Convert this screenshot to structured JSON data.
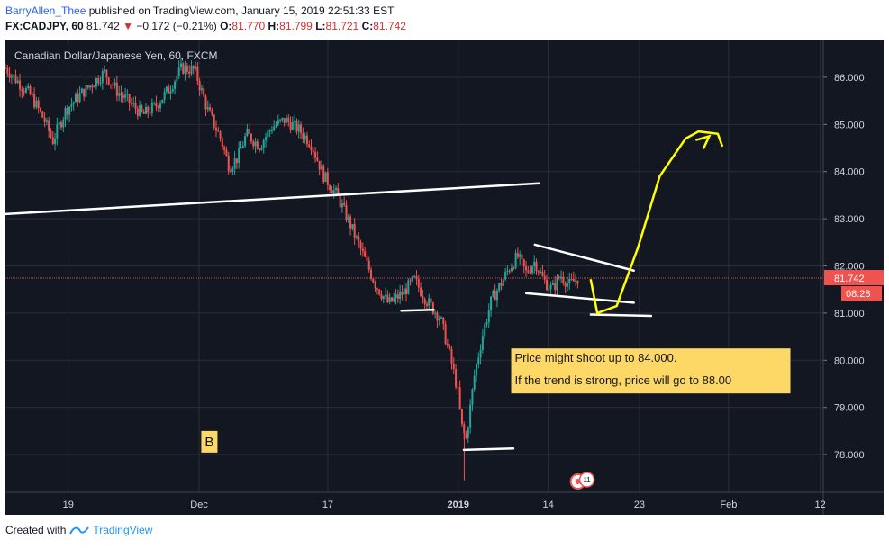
{
  "header": {
    "username": "BarryAllen_Thee",
    "published_text": "published on TradingView.com, January 15, 2019 22:51:33 EST",
    "symbol": "FX:CADJPY, 60",
    "last": "81.742",
    "change": "−0.172 (−0.21%)",
    "o_label": "O:",
    "o_value": "81.770",
    "h_label": "H:",
    "h_value": "81.799",
    "l_label": "L:",
    "l_value": "81.721",
    "c_label": "C:",
    "c_value": "81.742"
  },
  "footer": {
    "created_with": "Created with",
    "brand": "TradingView"
  },
  "colors": {
    "background": "#131722",
    "bull": "#26a69a",
    "bear": "#ef5350",
    "price_badge": "#ef5350",
    "note_bg": "#fdd867",
    "projection": "#ffff00",
    "trendline": "#ffffff"
  },
  "chart_data": {
    "type": "candlestick",
    "title": "Canadian Dollar/Japanese Yen, 60, FXCM",
    "y_ticks": [
      "86.000",
      "85.000",
      "84.000",
      "83.000",
      "82.000",
      "81.000",
      "80.000",
      "79.000",
      "78.000"
    ],
    "x_ticks": [
      "19",
      "Dec",
      "17",
      "2019",
      "14",
      "23",
      "Feb",
      "12"
    ],
    "ylim": [
      77.2,
      86.8
    ],
    "last_price": "81.742",
    "countdown": "08:28",
    "grid": true,
    "path": [
      [
        0,
        86.2
      ],
      [
        0.03,
        85.9
      ],
      [
        0.06,
        85.6
      ],
      [
        0.09,
        85.1
      ],
      [
        0.11,
        84.65
      ],
      [
        0.14,
        85.3
      ],
      [
        0.17,
        85.6
      ],
      [
        0.2,
        85.85
      ],
      [
        0.23,
        86.1
      ],
      [
        0.26,
        85.7
      ],
      [
        0.29,
        85.45
      ],
      [
        0.32,
        85.2
      ],
      [
        0.35,
        85.4
      ],
      [
        0.38,
        85.75
      ],
      [
        0.41,
        86.2
      ],
      [
        0.44,
        86.15
      ],
      [
        0.47,
        85.3
      ],
      [
        0.5,
        84.7
      ],
      [
        0.52,
        84.1
      ],
      [
        0.54,
        84.3
      ],
      [
        0.56,
        84.8
      ],
      [
        0.59,
        84.55
      ],
      [
        0.62,
        84.95
      ],
      [
        0.65,
        85.1
      ],
      [
        0.68,
        84.9
      ],
      [
        0.71,
        84.6
      ],
      [
        0.74,
        83.9
      ],
      [
        0.77,
        83.5
      ],
      [
        0.8,
        82.9
      ],
      [
        0.83,
        82.25
      ],
      [
        0.86,
        81.6
      ],
      [
        0.89,
        81.2
      ],
      [
        0.92,
        81.4
      ],
      [
        0.95,
        81.7
      ],
      [
        0.98,
        81.25
      ],
      [
        1.01,
        80.9
      ],
      [
        1.03,
        80.2
      ],
      [
        1.05,
        79.4
      ],
      [
        1.06,
        78.6
      ],
      [
        1.07,
        78.3
      ],
      [
        1.09,
        79.7
      ],
      [
        1.11,
        80.6
      ],
      [
        1.13,
        81.3
      ],
      [
        1.15,
        81.6
      ],
      [
        1.17,
        81.95
      ],
      [
        1.19,
        82.2
      ],
      [
        1.21,
        81.85
      ],
      [
        1.23,
        82.1
      ],
      [
        1.25,
        81.7
      ],
      [
        1.27,
        81.5
      ],
      [
        1.29,
        81.8
      ],
      [
        1.31,
        81.6
      ],
      [
        1.33,
        81.74
      ]
    ],
    "drawings": {
      "trendlines": [
        {
          "name": "long-term-support-line",
          "from": [
            0,
            83.1
          ],
          "to": [
            1.24,
            83.75
          ]
        },
        {
          "name": "support-line-81",
          "from": [
            0.92,
            81.05
          ],
          "to": [
            0.995,
            81.07
          ]
        },
        {
          "name": "bottom-support-line",
          "from": [
            1.065,
            78.1
          ],
          "to": [
            1.18,
            78.13
          ]
        },
        {
          "name": "wedge-upper-line",
          "from": [
            1.23,
            82.45
          ],
          "to": [
            1.46,
            81.9
          ]
        },
        {
          "name": "wedge-lower-line",
          "from": [
            1.21,
            81.42
          ],
          "to": [
            1.46,
            81.22
          ]
        },
        {
          "name": "support-line-81b",
          "from": [
            1.36,
            80.97
          ],
          "to": [
            1.5,
            80.94
          ]
        }
      ],
      "projection": [
        [
          1.36,
          81.7
        ],
        [
          1.375,
          81.0
        ],
        [
          1.42,
          81.15
        ],
        [
          1.47,
          82.4
        ],
        [
          1.52,
          83.9
        ],
        [
          1.58,
          84.7
        ],
        [
          1.61,
          84.85
        ],
        [
          1.655,
          84.8
        ],
        [
          1.665,
          84.55
        ]
      ],
      "projection_arrowhead": [
        1.635,
        84.75
      ],
      "annotations": [
        {
          "name": "note-line-1",
          "text": "Price might shoot up to 84.000."
        },
        {
          "name": "note-line-2",
          "text": "If the trend is strong, price will go to 88.00"
        }
      ],
      "marker_label": "B",
      "event_badges": [
        "11",
        "3"
      ]
    },
    "x_tick_positions_in_data_units": [
      0.146,
      0.45,
      0.749,
      1.052,
      1.261,
      1.473,
      1.68,
      1.893
    ]
  }
}
